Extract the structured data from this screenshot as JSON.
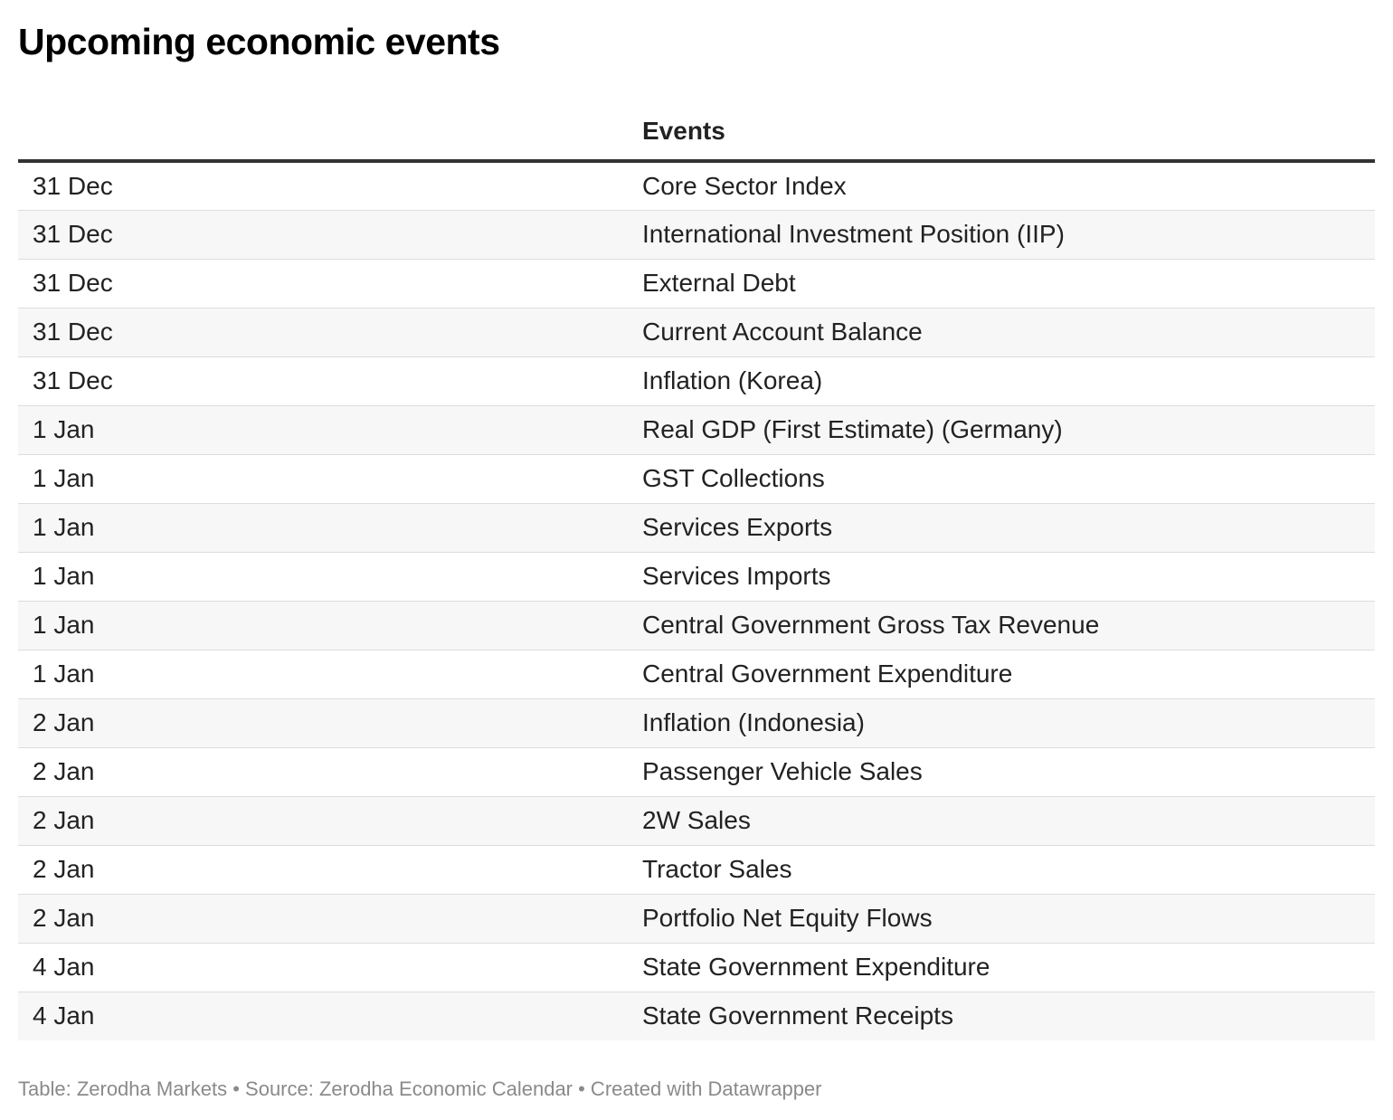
{
  "title": "Upcoming economic events",
  "chart_data": {
    "type": "table",
    "title": "Upcoming economic events",
    "columns": [
      "",
      "Events"
    ],
    "rows": [
      {
        "date": "31 Dec",
        "event": "Core Sector Index"
      },
      {
        "date": "31 Dec",
        "event": "International Investment Position (IIP)"
      },
      {
        "date": "31 Dec",
        "event": "External Debt"
      },
      {
        "date": "31 Dec",
        "event": "Current Account Balance"
      },
      {
        "date": "31 Dec",
        "event": "Inflation (Korea)"
      },
      {
        "date": "1 Jan",
        "event": "Real GDP (First Estimate) (Germany)"
      },
      {
        "date": "1 Jan",
        "event": "GST Collections"
      },
      {
        "date": "1 Jan",
        "event": "Services Exports"
      },
      {
        "date": "1 Jan",
        "event": "Services Imports"
      },
      {
        "date": "1 Jan",
        "event": "Central Government Gross Tax Revenue"
      },
      {
        "date": "1 Jan",
        "event": "Central Government Expenditure"
      },
      {
        "date": "2 Jan",
        "event": "Inflation (Indonesia)"
      },
      {
        "date": "2 Jan",
        "event": "Passenger Vehicle Sales"
      },
      {
        "date": "2 Jan",
        "event": "2W Sales"
      },
      {
        "date": "2 Jan",
        "event": "Tractor Sales"
      },
      {
        "date": "2 Jan",
        "event": "Portfolio Net Equity Flows"
      },
      {
        "date": "4 Jan",
        "event": "State Government Expenditure"
      },
      {
        "date": "4 Jan",
        "event": "State Government Receipts"
      }
    ]
  },
  "footer": "Table: Zerodha Markets • Source: Zerodha Economic Calendar • Created with Datawrapper",
  "colors": {
    "header_rule": "#333333",
    "row_alt": "#f7f7f7",
    "row_divider": "#dddddd",
    "footer_text": "#8a8a8a"
  }
}
